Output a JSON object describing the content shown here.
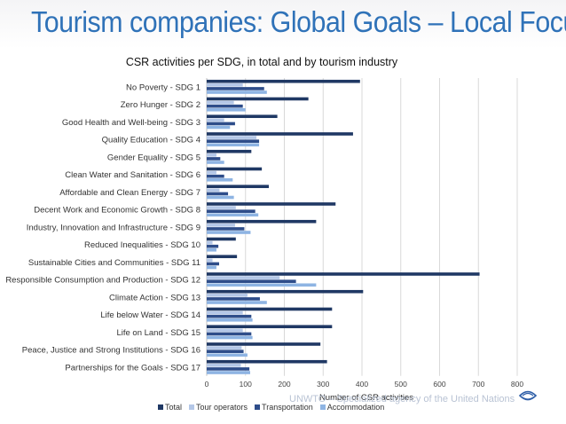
{
  "page": {
    "title": "Tourism companies: Global Goals – Local Focus"
  },
  "watermark": "UNWTO – Specialized agency of the United Nations",
  "chart_data": {
    "type": "bar",
    "orientation": "horizontal",
    "title": "CSR activities per SDG, in total and by tourism industry",
    "xlabel": "Number of CSR activities",
    "ylabel": "",
    "xlim": [
      0,
      800
    ],
    "xticks": [
      0,
      100,
      200,
      300,
      400,
      500,
      600,
      700,
      800
    ],
    "grid": true,
    "legend_position": "bottom",
    "categories": [
      "No Poverty - SDG 1",
      "Zero Hunger - SDG 2",
      "Good Health and Well-being - SDG 3",
      "Quality Education - SDG 4",
      "Gender Equality - SDG 5",
      "Clean Water and Sanitation - SDG 6",
      "Affordable and Clean Energy - SDG 7",
      "Decent Work and Economic Growth - SDG 8",
      "Industry, Innovation and Infrastructure - SDG 9",
      "Reduced Inequalities - SDG 10",
      "Sustainable Cities and Communities - SDG 11",
      "Responsible Consumption and Production - SDG 12",
      "Climate Action - SDG 13",
      "Life below Water - SDG 14",
      "Life on Land - SDG 15",
      "Peace, Justice and Strong Institutions - SDG 16",
      "Partnerships for the Goals - SDG 17"
    ],
    "series": [
      {
        "name": "Total",
        "color": "#1f3864",
        "values": [
          395,
          262,
          182,
          377,
          115,
          142,
          160,
          332,
          282,
          75,
          78,
          703,
          403,
          323,
          323,
          293,
          310
        ]
      },
      {
        "name": "Tour operators",
        "color": "#b4c7e7",
        "values": [
          93,
          70,
          45,
          128,
          25,
          25,
          33,
          75,
          73,
          15,
          15,
          188,
          105,
          93,
          93,
          90,
          88
        ]
      },
      {
        "name": "Transportation",
        "color": "#2e4d8a",
        "values": [
          148,
          93,
          73,
          135,
          35,
          45,
          55,
          125,
          97,
          30,
          32,
          230,
          137,
          115,
          115,
          95,
          110
        ]
      },
      {
        "name": "Accommodation",
        "color": "#8eb4e3",
        "values": [
          155,
          100,
          60,
          135,
          45,
          67,
          70,
          133,
          113,
          25,
          25,
          282,
          155,
          118,
          118,
          105,
          112
        ]
      }
    ]
  }
}
